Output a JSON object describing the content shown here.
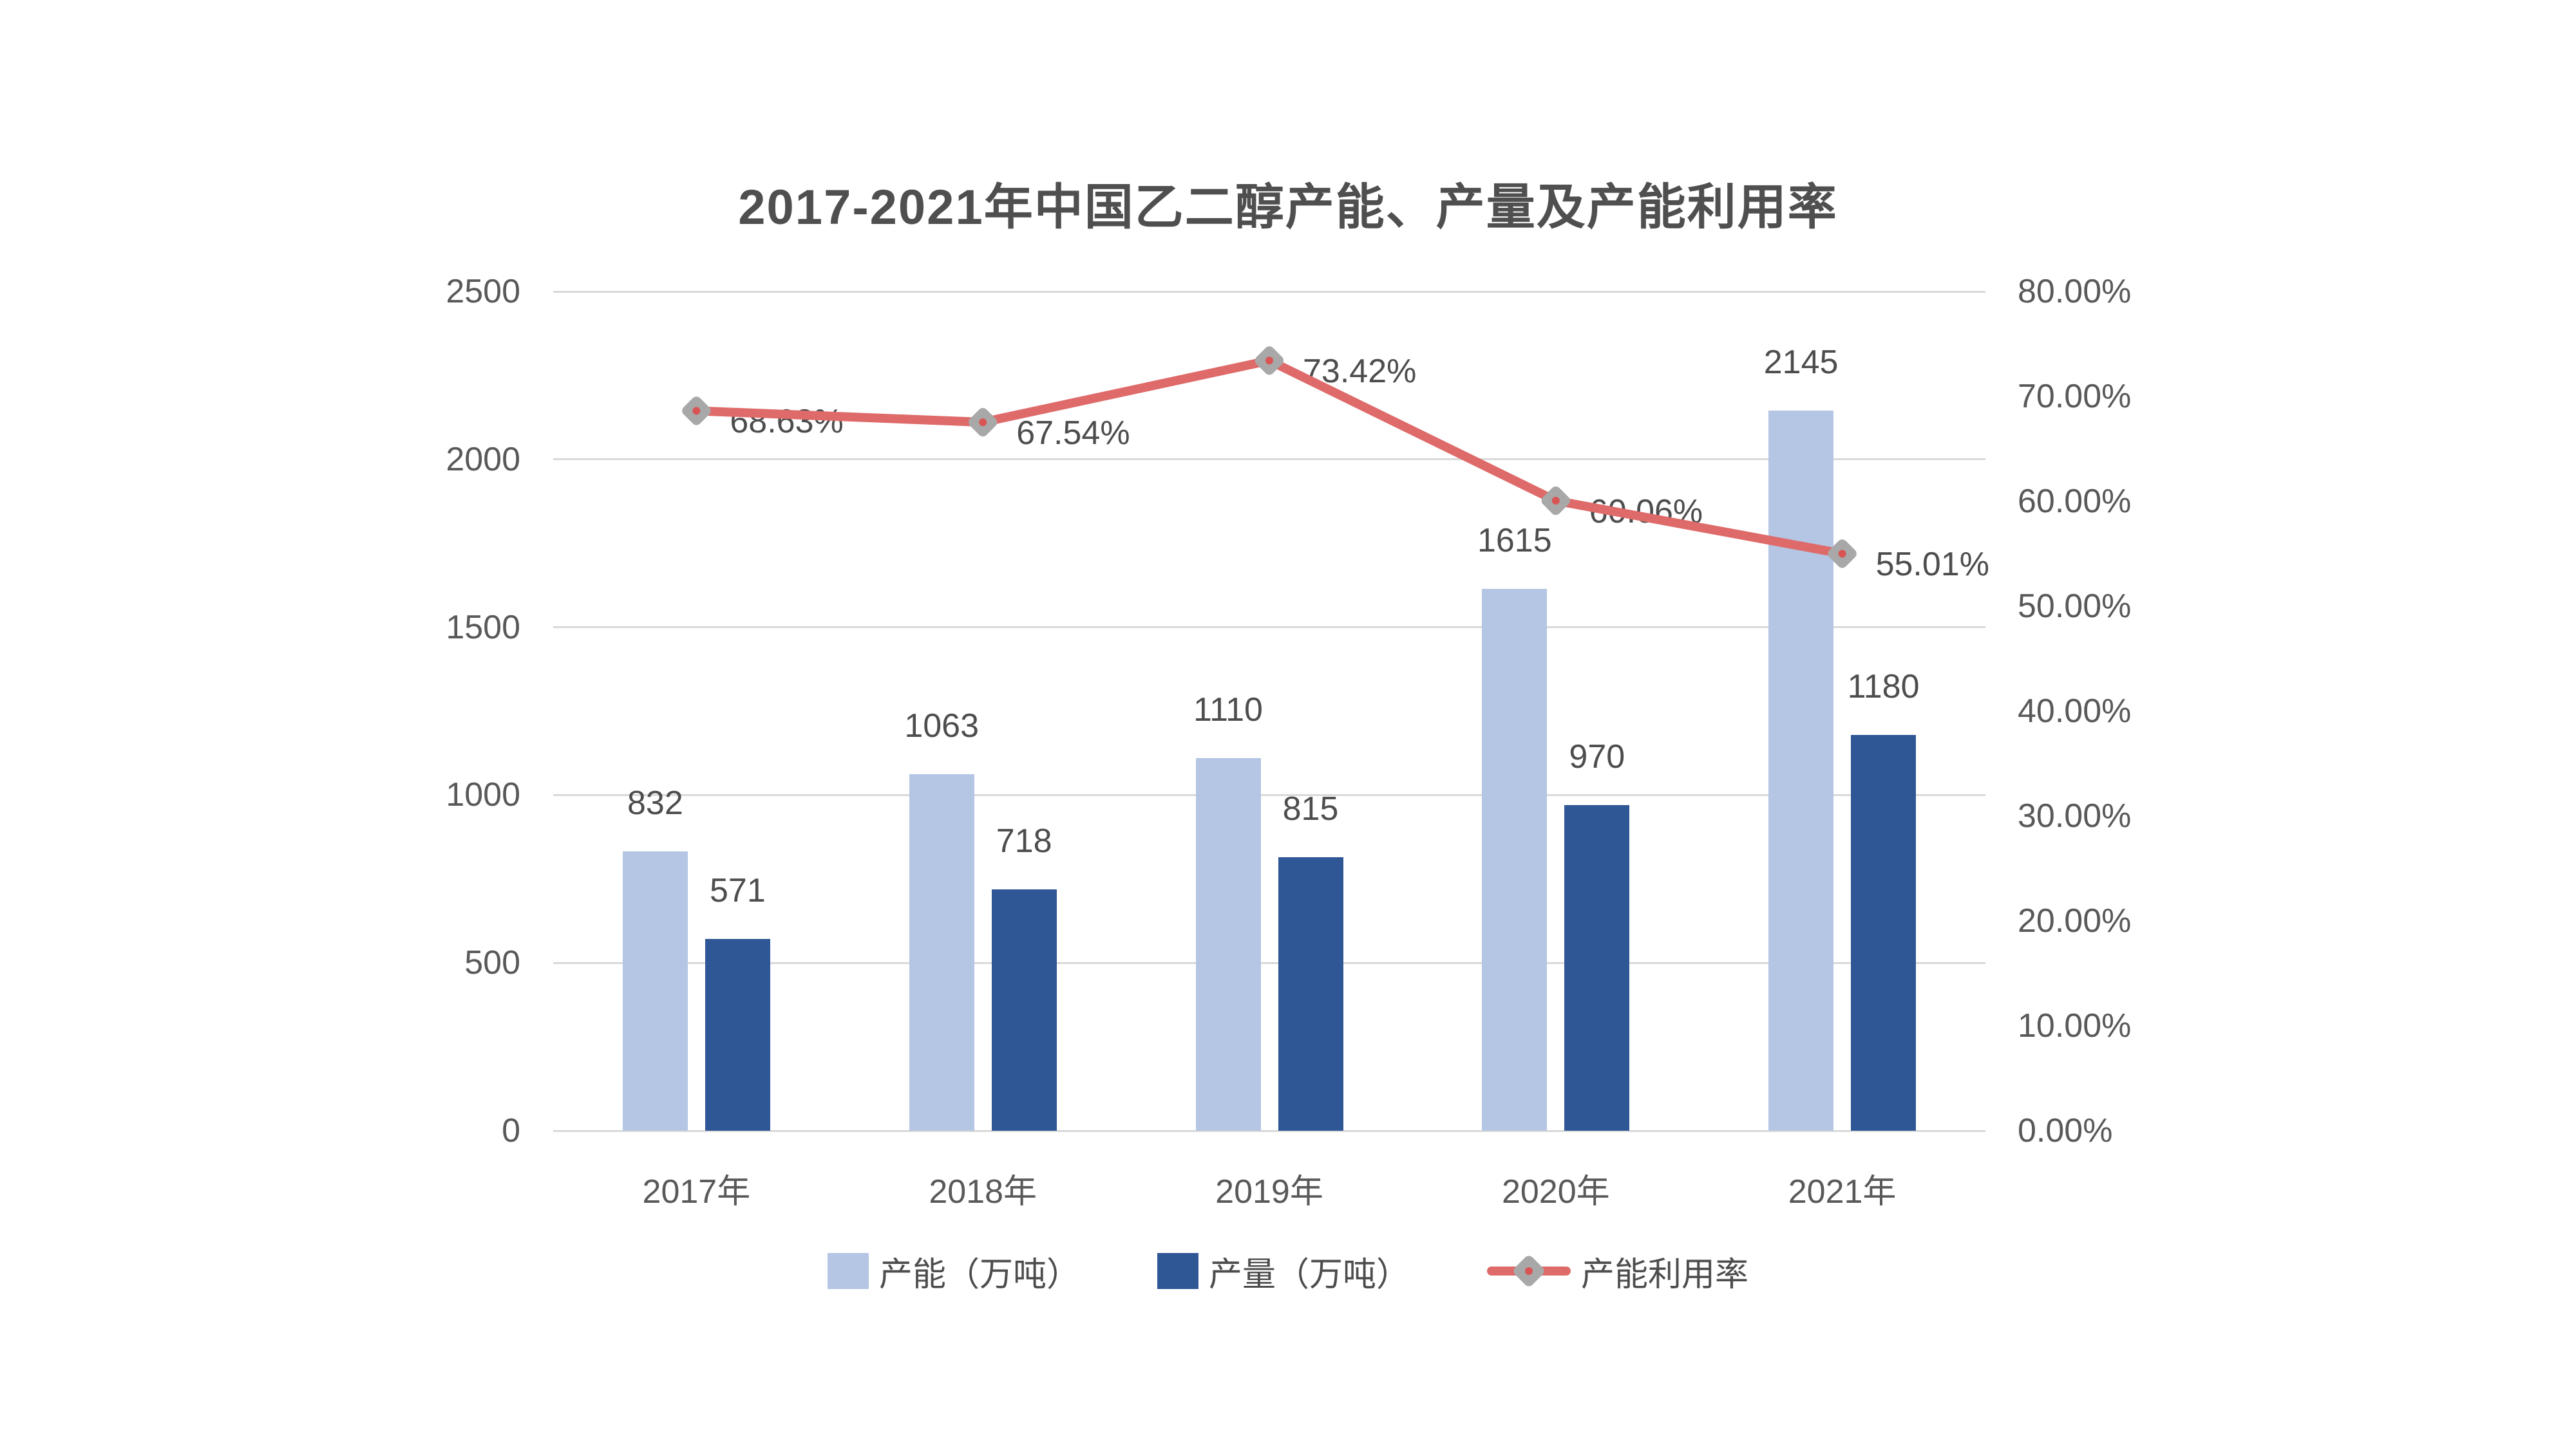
{
  "page": {
    "background": "#FFFFFF"
  },
  "chart_data": {
    "type": "combo",
    "title": "2017-2021年中国乙二醇产能、产量及产能利用率",
    "categories": [
      "2017年",
      "2018年",
      "2019年",
      "2020年",
      "2021年"
    ],
    "series": [
      {
        "name": "产能（万吨）",
        "chart": "bar",
        "axis": "left",
        "color": "#B4C6E4",
        "values": [
          832,
          1063,
          1110,
          1615,
          2145
        ],
        "labels": [
          "832",
          "1063",
          "1110",
          "1615",
          "2145"
        ]
      },
      {
        "name": "产量（万吨）",
        "chart": "bar",
        "axis": "left",
        "color": "#2F5796",
        "values": [
          571,
          718,
          815,
          970,
          1180
        ],
        "labels": [
          "571",
          "718",
          "815",
          "970",
          "1180"
        ]
      },
      {
        "name": "产能利用率",
        "chart": "line",
        "axis": "right",
        "color": "#DF6A6A",
        "marker_color": "#A8A8A8",
        "marker_dot_color": "#D95454",
        "values": [
          68.63,
          67.54,
          73.42,
          60.06,
          55.01
        ],
        "labels": [
          "68.63%",
          "67.54%",
          "73.42%",
          "60.06%",
          "55.01%"
        ]
      }
    ],
    "left_axis": {
      "min": 0,
      "max": 2500,
      "tick_values": [
        0,
        500,
        1000,
        1500,
        2000,
        2500
      ],
      "ticks": [
        "0",
        "500",
        "1000",
        "1500",
        "2000",
        "2500"
      ]
    },
    "right_axis": {
      "min": 0,
      "max": 80,
      "tick_values": [
        0,
        10,
        20,
        30,
        40,
        50,
        60,
        70,
        80
      ],
      "ticks": [
        "0.00%",
        "10.00%",
        "20.00%",
        "30.00%",
        "40.00%",
        "50.00%",
        "60.00%",
        "70.00%",
        "80.00%"
      ]
    },
    "grid": true,
    "gridline_color": "#D9D9D9",
    "tick_color": "#595959",
    "label_color": "#4D4D4D",
    "legend_position": "bottom"
  }
}
